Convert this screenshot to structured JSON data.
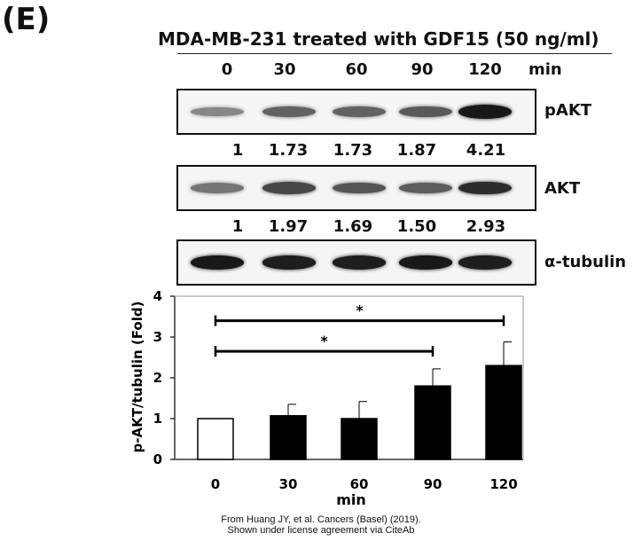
{
  "panel_label": "(E)",
  "heading": "MDA-MB-231 treated with GDF15 (50 ng/ml)",
  "times": [
    "0",
    "30",
    "60",
    "90",
    "120"
  ],
  "time_unit": "min",
  "blots": [
    {
      "name": "pAKT",
      "quant": [
        "1",
        "1.73",
        "1.73",
        "1.87",
        "4.21"
      ],
      "intensity": [
        0.35,
        0.55,
        0.55,
        0.6,
        0.95
      ]
    },
    {
      "name": "AKT",
      "quant": [
        "1",
        "1.97",
        "1.69",
        "1.50",
        "2.93"
      ],
      "intensity": [
        0.45,
        0.7,
        0.62,
        0.58,
        0.85
      ]
    },
    {
      "name": "α-tubulin",
      "intensity": [
        0.95,
        0.92,
        0.92,
        0.95,
        0.92
      ]
    }
  ],
  "chart_data": {
    "type": "bar",
    "categories": [
      "0",
      "30",
      "60",
      "90",
      "120"
    ],
    "values": [
      1.0,
      1.07,
      1.0,
      1.8,
      2.3
    ],
    "errors": [
      0,
      0.28,
      0.42,
      0.42,
      0.58
    ],
    "bar_fill": [
      "#ffffff",
      "#000000",
      "#000000",
      "#000000",
      "#000000"
    ],
    "xlabel": "min",
    "ylabel": "p-AKT/tubulin (Fold)",
    "ylim": [
      0,
      4
    ],
    "yticks": [
      "0",
      "1",
      "2",
      "3",
      "4"
    ],
    "grid": false,
    "significance": [
      {
        "from": "0",
        "to": "120",
        "y": 3.4,
        "label": "*"
      },
      {
        "from": "0",
        "to": "90",
        "y": 2.65,
        "label": "*"
      }
    ]
  },
  "caption": {
    "line1": "From Huang JY, et al. Cancers (Basel) (2019).",
    "line2": "Shown under license agreement via CiteAb"
  }
}
